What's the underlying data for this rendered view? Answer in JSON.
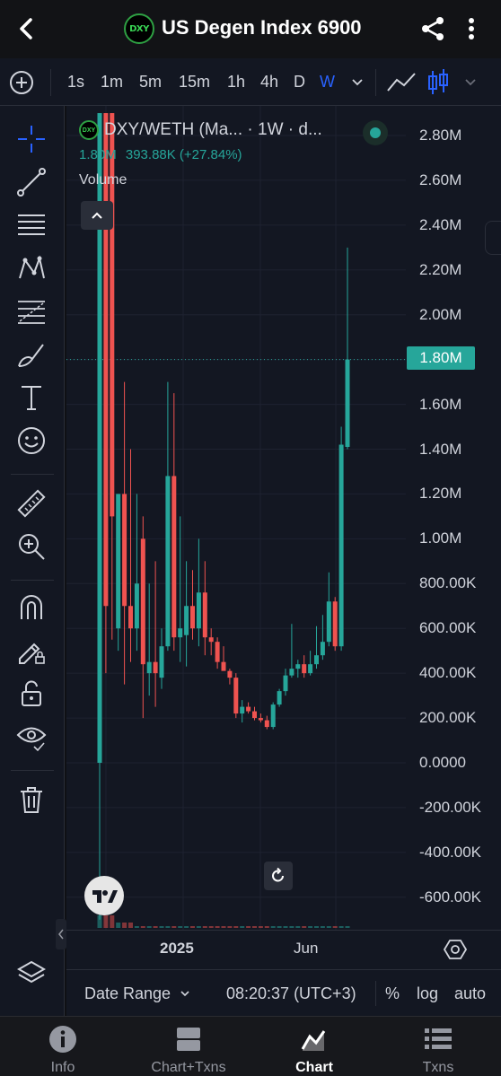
{
  "header": {
    "back_icon": "arrow-left-icon",
    "logo_text": "DXY",
    "title": "US Degen Index 6900",
    "share_icon": "share-icon",
    "more_icon": "more-vertical-icon"
  },
  "intervals": {
    "items": [
      "1s",
      "1m",
      "5m",
      "15m",
      "1h",
      "4h",
      "D",
      "W"
    ],
    "active": "W"
  },
  "legend": {
    "logo_text": "DXY",
    "symbol": "DXY/WETH (Ma... · 1W · d...",
    "price": "1.80M",
    "change": "393.88K (+27.84%)",
    "volume_label": "Volume"
  },
  "price_axis": {
    "labels": [
      "2.80M",
      "2.60M",
      "2.40M",
      "2.20M",
      "2.00M",
      "1.80M",
      "1.60M",
      "1.40M",
      "1.20M",
      "1.00M",
      "800.00K",
      "600.00K",
      "400.00K",
      "200.00K",
      "0.0000",
      "-200.00K",
      "-400.00K",
      "-600.00K"
    ],
    "current_price_tag": "1.80M"
  },
  "time_axis": {
    "labels": [
      "2025",
      "Jun"
    ]
  },
  "date_bar": {
    "date_range": "Date Range",
    "clock": "08:20:37 (UTC+3)",
    "percent": "%",
    "log": "log",
    "auto": "auto"
  },
  "bottom_nav": {
    "items": [
      {
        "label": "Info",
        "icon": "info-icon"
      },
      {
        "label": "Chart+Txns",
        "icon": "split-panel-icon"
      },
      {
        "label": "Chart",
        "icon": "chart-icon"
      },
      {
        "label": "Txns",
        "icon": "list-icon"
      }
    ],
    "active": "Chart"
  },
  "colors": {
    "up": "#26a69a",
    "down": "#ef5350",
    "accent": "#2962ff",
    "background": "#131722"
  },
  "chart_data": {
    "type": "candlestick",
    "title": "DXY/WETH (Ma... · 1W · d...",
    "interval": "1W",
    "ylim": [
      -700000,
      2900000
    ],
    "yticks": [
      2800000,
      2600000,
      2400000,
      2200000,
      2000000,
      1800000,
      1600000,
      1400000,
      1200000,
      1000000,
      800000,
      600000,
      400000,
      200000,
      0,
      -200000,
      -400000,
      -600000
    ],
    "last_price": 1800000,
    "change": 393880,
    "change_pct": 27.84,
    "candles": [
      {
        "o": 0,
        "h": 2900000,
        "l": -700000,
        "c": 2900000
      },
      {
        "o": 2900000,
        "h": 2900000,
        "l": 400000,
        "c": 700000
      },
      {
        "o": 2900000,
        "h": 2900000,
        "l": 550000,
        "c": 1100000
      },
      {
        "o": 600000,
        "h": 1200000,
        "l": 500000,
        "c": 1200000
      },
      {
        "o": 1200000,
        "h": 1700000,
        "l": 350000,
        "c": 700000
      },
      {
        "o": 700000,
        "h": 1400000,
        "l": 450000,
        "c": 600000
      },
      {
        "o": 600000,
        "h": 1200000,
        "l": 500000,
        "c": 800000
      },
      {
        "o": 1000000,
        "h": 1100000,
        "l": 200000,
        "c": 440000
      },
      {
        "o": 400000,
        "h": 800000,
        "l": 300000,
        "c": 450000
      },
      {
        "o": 450000,
        "h": 900000,
        "l": 250000,
        "c": 400000
      },
      {
        "o": 380000,
        "h": 600000,
        "l": 330000,
        "c": 520000
      },
      {
        "o": 520000,
        "h": 1700000,
        "l": 500000,
        "c": 1280000
      },
      {
        "o": 1280000,
        "h": 1650000,
        "l": 500000,
        "c": 560000
      },
      {
        "o": 560000,
        "h": 1100000,
        "l": 450000,
        "c": 600000
      },
      {
        "o": 570000,
        "h": 900000,
        "l": 430000,
        "c": 700000
      },
      {
        "o": 700000,
        "h": 860000,
        "l": 550000,
        "c": 600000
      },
      {
        "o": 600000,
        "h": 1000000,
        "l": 520000,
        "c": 760000
      },
      {
        "o": 760000,
        "h": 900000,
        "l": 480000,
        "c": 560000
      },
      {
        "o": 560000,
        "h": 600000,
        "l": 480000,
        "c": 540000
      },
      {
        "o": 540000,
        "h": 560000,
        "l": 420000,
        "c": 450000
      },
      {
        "o": 450000,
        "h": 520000,
        "l": 420000,
        "c": 410000
      },
      {
        "o": 410000,
        "h": 420000,
        "l": 350000,
        "c": 380000
      },
      {
        "o": 380000,
        "h": 400000,
        "l": 200000,
        "c": 220000
      },
      {
        "o": 220000,
        "h": 280000,
        "l": 180000,
        "c": 250000
      },
      {
        "o": 250000,
        "h": 270000,
        "l": 220000,
        "c": 230000
      },
      {
        "o": 230000,
        "h": 250000,
        "l": 190000,
        "c": 200000
      },
      {
        "o": 200000,
        "h": 220000,
        "l": 180000,
        "c": 190000
      },
      {
        "o": 190000,
        "h": 210000,
        "l": 150000,
        "c": 160000
      },
      {
        "o": 160000,
        "h": 270000,
        "l": 150000,
        "c": 260000
      },
      {
        "o": 260000,
        "h": 330000,
        "l": 250000,
        "c": 320000
      },
      {
        "o": 320000,
        "h": 420000,
        "l": 300000,
        "c": 390000
      },
      {
        "o": 390000,
        "h": 620000,
        "l": 380000,
        "c": 420000
      },
      {
        "o": 420000,
        "h": 460000,
        "l": 380000,
        "c": 440000
      },
      {
        "o": 440000,
        "h": 480000,
        "l": 380000,
        "c": 400000
      },
      {
        "o": 400000,
        "h": 500000,
        "l": 390000,
        "c": 440000
      },
      {
        "o": 440000,
        "h": 610000,
        "l": 420000,
        "c": 480000
      },
      {
        "o": 480000,
        "h": 660000,
        "l": 460000,
        "c": 540000
      },
      {
        "o": 540000,
        "h": 850000,
        "l": 520000,
        "c": 720000
      },
      {
        "o": 720000,
        "h": 740000,
        "l": 500000,
        "c": 520000
      },
      {
        "o": 520000,
        "h": 1500000,
        "l": 500000,
        "c": 1420000
      },
      {
        "o": 1410000,
        "h": 2300000,
        "l": 1400000,
        "c": 1800000
      }
    ],
    "volume_label": "Volume"
  }
}
